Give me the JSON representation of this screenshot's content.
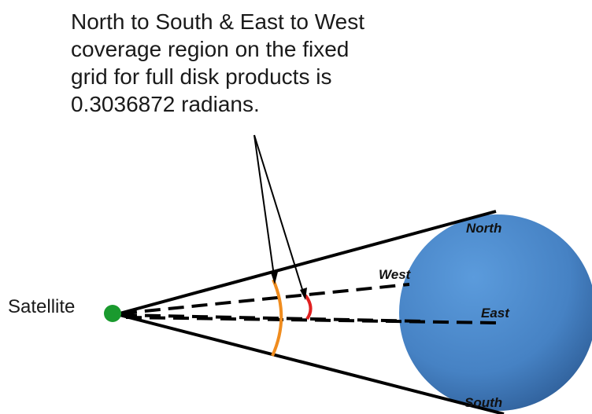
{
  "caption": {
    "lines": [
      "North to South & East to West",
      "coverage region on the fixed",
      "grid for full disk products is",
      "0.3036872 radians."
    ]
  },
  "satellite": {
    "label": "Satellite",
    "color": "#1a9a2e"
  },
  "earth": {
    "color": "#4a86c8"
  },
  "directions": {
    "north": "North",
    "south": "South",
    "west": "West",
    "east": "East"
  },
  "colors": {
    "ns_arc": "#f08c1e",
    "ew_arc": "#e02020",
    "lines": "#000000"
  }
}
